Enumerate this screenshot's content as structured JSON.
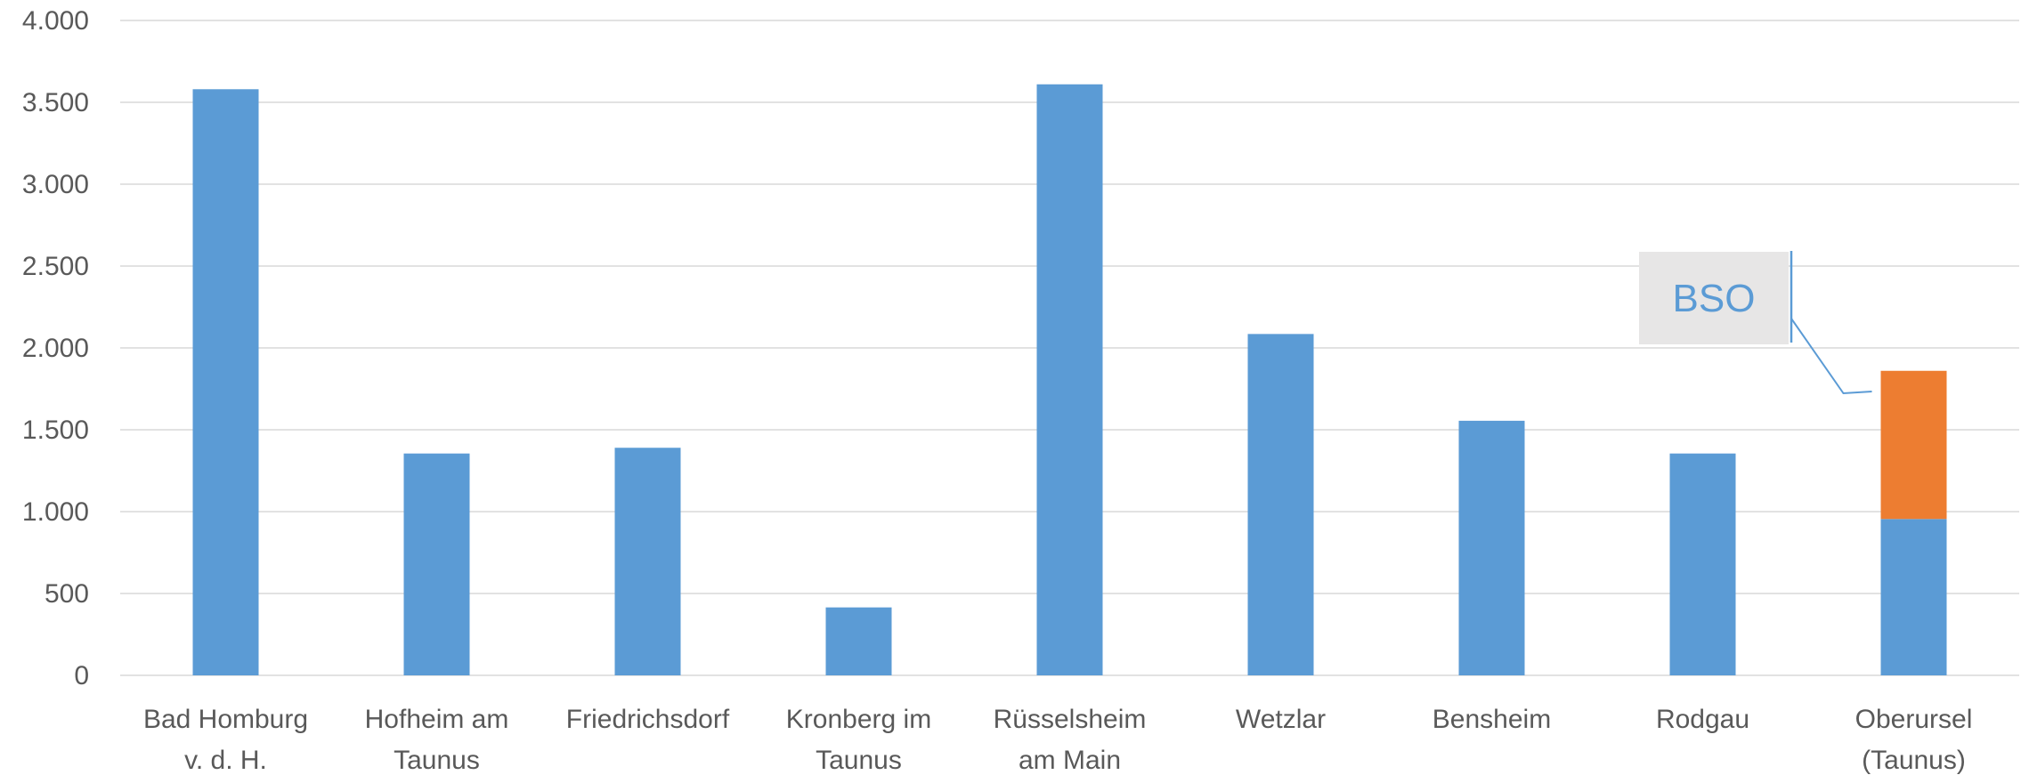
{
  "chart_data": {
    "type": "bar",
    "stacked": true,
    "title": "",
    "xlabel": "",
    "ylabel": "",
    "ylim": [
      0,
      4000
    ],
    "y_ticks": [
      {
        "value": 0,
        "label": "0"
      },
      {
        "value": 500,
        "label": "500"
      },
      {
        "value": 1000,
        "label": "1.000"
      },
      {
        "value": 1500,
        "label": "1.500"
      },
      {
        "value": 2000,
        "label": "2.000"
      },
      {
        "value": 2500,
        "label": "2.500"
      },
      {
        "value": 3000,
        "label": "3.000"
      },
      {
        "value": 3500,
        "label": "3.500"
      },
      {
        "value": 4000,
        "label": "4.000"
      }
    ],
    "grid": true,
    "legend": "none",
    "categories": [
      [
        "Bad Homburg",
        "v. d. H."
      ],
      [
        "Hofheim am",
        "Taunus"
      ],
      [
        "Friedrichsdorf"
      ],
      [
        "Kronberg im",
        "Taunus"
      ],
      [
        "Rüsselsheim",
        "am Main"
      ],
      [
        "Wetzlar"
      ],
      [
        "Bensheim"
      ],
      [
        "Rodgau"
      ],
      [
        "Oberursel",
        "(Taunus)"
      ]
    ],
    "series": [
      {
        "color": "#5B9BD5",
        "values": [
          3580,
          1355,
          1390,
          415,
          3610,
          2085,
          1555,
          1355,
          955
        ]
      },
      {
        "color": "#ED7D31",
        "values": [
          0,
          0,
          0,
          0,
          0,
          0,
          0,
          0,
          905
        ]
      }
    ],
    "annotations": [
      {
        "text": "BSO",
        "category_index": 8,
        "series_index": 1,
        "box_fill": "#E7E6E6",
        "text_color": "#5B9BD5",
        "leader_color": "#5B9BD5"
      }
    ],
    "colors": {
      "gridline": "#D9D9D9",
      "axis_text": "#595959"
    }
  }
}
